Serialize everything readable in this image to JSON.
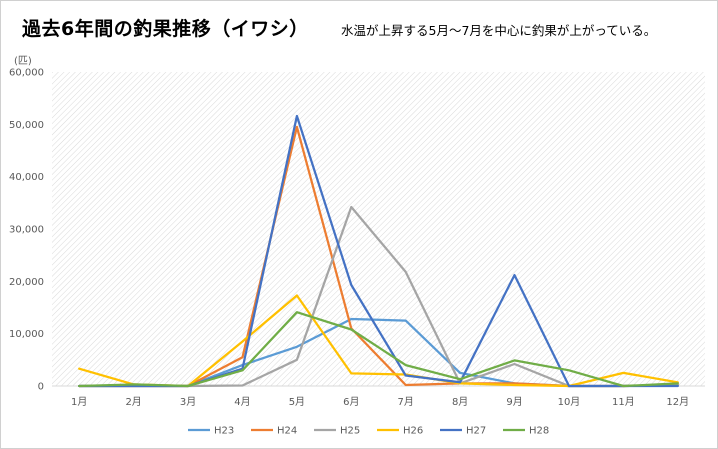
{
  "title": "過去6年間の釣果推移（イワシ）",
  "subtitle": "水温が上昇する5月～7月を中心に釣果が上がっている。",
  "chart_data": {
    "type": "line",
    "title": "過去6年間の釣果推移（イワシ）",
    "subtitle": "水温が上昇する5月～7月を中心に釣果が上がっている。",
    "ylabel": "(匹)",
    "xlabel": "",
    "categories": [
      "1月",
      "2月",
      "3月",
      "4月",
      "5月",
      "6月",
      "7月",
      "8月",
      "9月",
      "10月",
      "11月",
      "12月"
    ],
    "ylim": [
      0,
      60000
    ],
    "yticks": [
      0,
      10000,
      20000,
      30000,
      40000,
      50000,
      60000
    ],
    "ytick_labels": [
      "0",
      "10,000",
      "20,000",
      "30,000",
      "40,000",
      "50,000",
      "60,000"
    ],
    "legend_position": "bottom",
    "grid": "diagonal-hatch",
    "series": [
      {
        "name": "H23",
        "color": "#5b9bd5",
        "values": [
          0,
          0,
          0,
          4000,
          7500,
          12800,
          12500,
          2500,
          500,
          0,
          0,
          200
        ]
      },
      {
        "name": "H24",
        "color": "#ed7d31",
        "values": [
          0,
          0,
          0,
          5500,
          49500,
          11000,
          200,
          500,
          500,
          0,
          0,
          200
        ]
      },
      {
        "name": "H25",
        "color": "#a5a5a5",
        "values": [
          0,
          0,
          0,
          100,
          5000,
          34200,
          21800,
          500,
          4200,
          0,
          0,
          200
        ]
      },
      {
        "name": "H26",
        "color": "#ffc000",
        "values": [
          3300,
          300,
          0,
          8500,
          17300,
          2400,
          2200,
          500,
          200,
          0,
          2500,
          700
        ]
      },
      {
        "name": "H27",
        "color": "#4472c4",
        "values": [
          0,
          0,
          0,
          3300,
          51600,
          19300,
          2000,
          700,
          21200,
          0,
          0,
          0
        ]
      },
      {
        "name": "H28",
        "color": "#70ad47",
        "values": [
          0,
          300,
          0,
          3000,
          14100,
          10800,
          4000,
          1300,
          4900,
          3000,
          0,
          500
        ]
      }
    ]
  }
}
